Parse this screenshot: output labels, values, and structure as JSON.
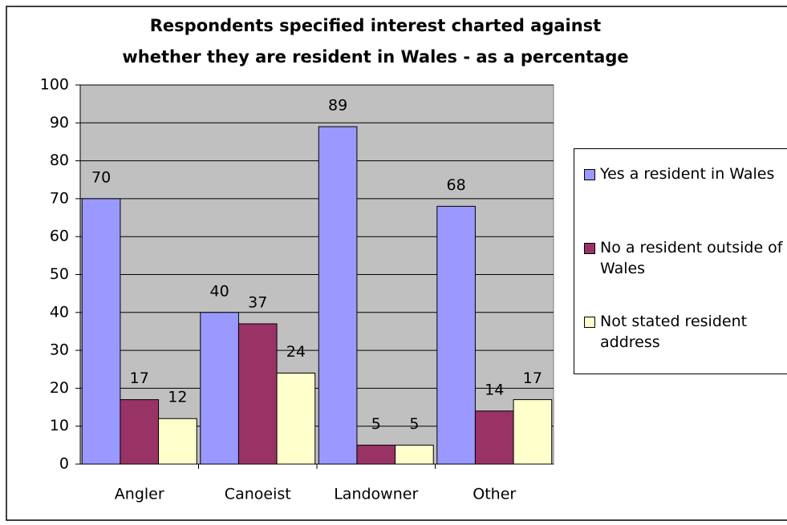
{
  "chart_data": {
    "type": "bar",
    "title": [
      "Respondents specified interest charted against",
      "whether they are resident in Wales - as a percentage"
    ],
    "categories": [
      "Angler",
      "Canoeist",
      "Landowner",
      "Other"
    ],
    "series": [
      {
        "name": "Yes a resident in Wales",
        "color": "#9999ff",
        "values": [
          70,
          40,
          89,
          68
        ]
      },
      {
        "name": "No a resident outside of Wales",
        "color": "#993366",
        "values": [
          17,
          37,
          5,
          14
        ]
      },
      {
        "name": "Not stated resident address",
        "color": "#ffffcc",
        "values": [
          12,
          24,
          5,
          17
        ]
      }
    ],
    "ylim": [
      0,
      100
    ],
    "yticks": [
      0,
      10,
      20,
      30,
      40,
      50,
      60,
      70,
      80,
      90,
      100
    ],
    "grid": true,
    "legend": "right",
    "data_labels": true
  }
}
